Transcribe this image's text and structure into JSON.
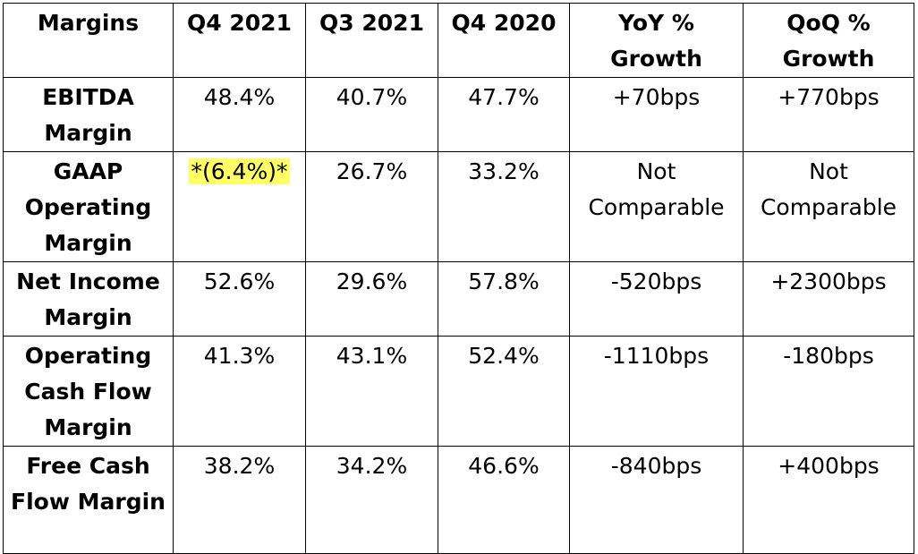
{
  "table": {
    "headers": [
      "Margins",
      "Q4 2021",
      "Q3 2021",
      "Q4 2020",
      "YoY % Growth",
      "QoQ % Growth"
    ],
    "rows": [
      {
        "label": "EBITDA Margin",
        "values": [
          "48.4%",
          "40.7%",
          "47.7%",
          "+70bps",
          "+770bps"
        ]
      },
      {
        "label": "GAAP Operating Margin",
        "values": [
          "*(6.4%)*",
          "26.7%",
          "33.2%",
          "Not Comparable",
          "Not Comparable"
        ]
      },
      {
        "label": "Net Income Margin",
        "values": [
          "52.6%",
          "29.6%",
          "57.8%",
          "-520bps",
          "+2300bps"
        ]
      },
      {
        "label": "Operating Cash Flow Margin",
        "values": [
          "41.3%",
          "43.1%",
          "52.4%",
          "-1110bps",
          "-180bps"
        ]
      },
      {
        "label": "Free Cash Flow Margin",
        "values": [
          "38.2%",
          "34.2%",
          "46.6%",
          "-840bps",
          "+400bps"
        ]
      }
    ],
    "highlight_color": "#ffff66"
  }
}
